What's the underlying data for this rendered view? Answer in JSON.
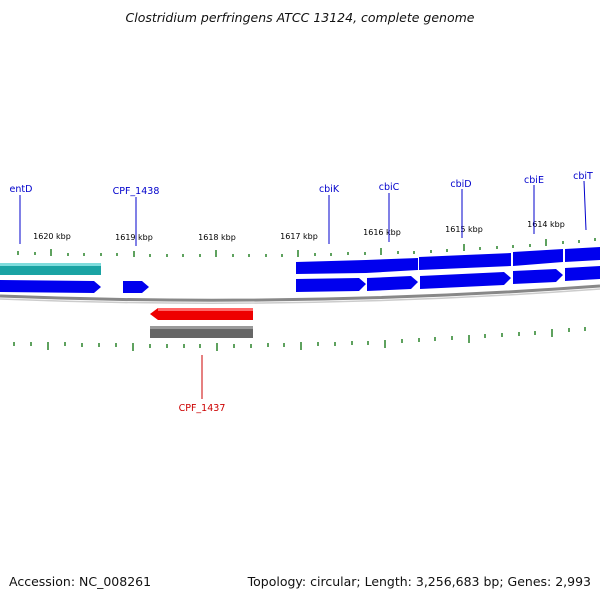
{
  "title": "Clostridium perfringens ATCC 13124, complete genome",
  "footer": {
    "accession": "Accession: NC_008261",
    "summary": "Topology: circular; Length: 3,256,683 bp; Genes: 2,993"
  },
  "colors": {
    "forward_cds": "#0000ee",
    "reverse_cds": "#ee0000",
    "forward_gene": "#1aa3a3",
    "reverse_gene": "#666666",
    "backbone": "#888888",
    "ticks": "#1a7a1a",
    "label_forward": "#0000cc",
    "label_reverse": "#cc0000"
  },
  "tick_labels": [
    "1620 kbp",
    "1619 kbp",
    "1618 kbp",
    "1617 kbp",
    "1616 kbp",
    "1615 kbp",
    "1614 kbp"
  ],
  "genes": [
    {
      "name": "entD",
      "strand": "forward"
    },
    {
      "name": "CPF_1438",
      "strand": "forward"
    },
    {
      "name": "cbiK",
      "strand": "forward"
    },
    {
      "name": "cbiC",
      "strand": "forward"
    },
    {
      "name": "cbiD",
      "strand": "forward"
    },
    {
      "name": "cbiE",
      "strand": "forward"
    },
    {
      "name": "cbiT",
      "strand": "forward"
    },
    {
      "name": "CPF_1437",
      "strand": "reverse"
    }
  ]
}
